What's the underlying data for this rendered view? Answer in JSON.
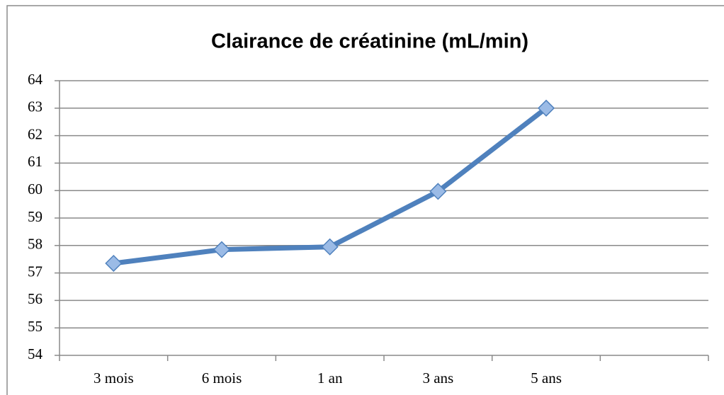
{
  "chart_data": {
    "type": "line",
    "title": "Clairance de créatinine (mL/min)",
    "categories": [
      "3 mois",
      "6 mois",
      "1 an",
      "3 ans",
      "5 ans",
      null
    ],
    "series": [
      {
        "name": null,
        "color": "#4f81bd",
        "values": [
          57.35,
          57.85,
          57.95,
          59.97,
          63,
          null
        ]
      }
    ],
    "ylim": [
      54,
      64
    ],
    "yticks": [
      54,
      55,
      56,
      57,
      58,
      59,
      60,
      61,
      62,
      63,
      64
    ],
    "grid": true
  }
}
